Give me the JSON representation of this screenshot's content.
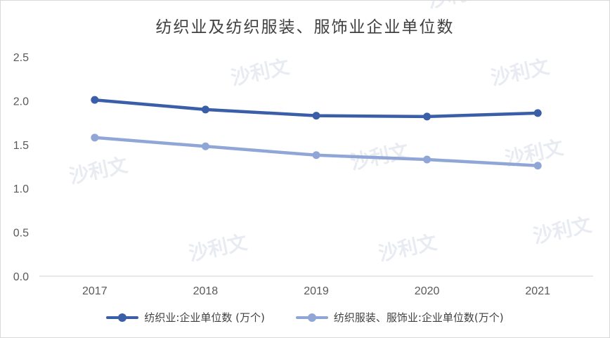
{
  "chart_data": {
    "type": "line",
    "title": "纺织业及纺织服装、服饰业企业单位数",
    "categories": [
      "2017",
      "2018",
      "2019",
      "2020",
      "2021"
    ],
    "ylim": [
      0,
      2.5
    ],
    "yticks": [
      "0.0",
      "0.5",
      "1.0",
      "1.5",
      "2.0",
      "2.5"
    ],
    "grid": false,
    "legend_position": "bottom",
    "series": [
      {
        "name": "纺织业:企业单位数 (万个)",
        "values": [
          2.01,
          1.9,
          1.83,
          1.82,
          1.86
        ],
        "color": "#3a5ea8"
      },
      {
        "name": "纺织服装、服饰业:企业单位数(万个)",
        "values": [
          1.58,
          1.48,
          1.38,
          1.33,
          1.26
        ],
        "color": "#8fa6d6"
      }
    ]
  },
  "watermark": "沙利文"
}
